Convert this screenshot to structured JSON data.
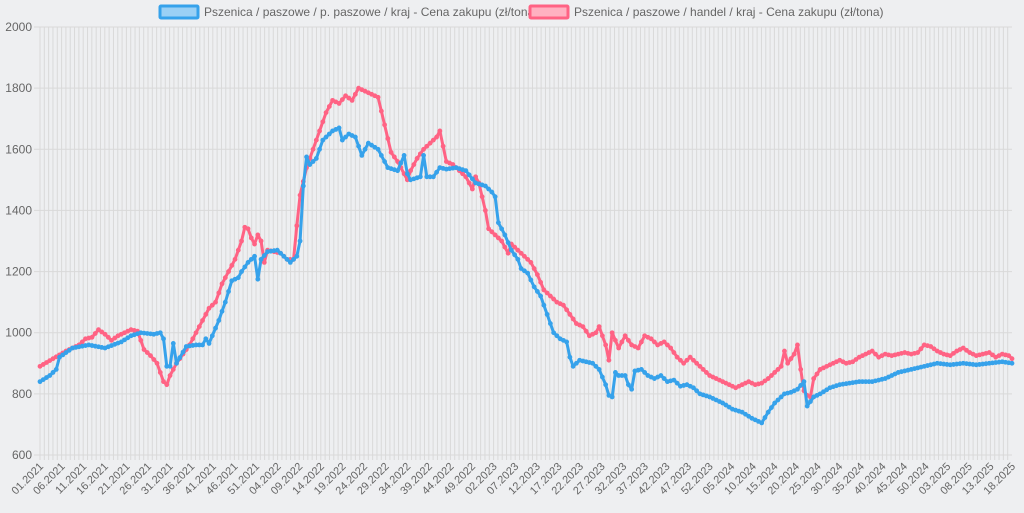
{
  "chart_data": {
    "type": "line",
    "x_ticks": [
      "01.2021",
      "06.2021",
      "11.2021",
      "16.2021",
      "21.2021",
      "26.2021",
      "31.2021",
      "36.2021",
      "41.2021",
      "46.2021",
      "51.2021",
      "04.2022",
      "09.2022",
      "14.2022",
      "19.2022",
      "24.2022",
      "29.2022",
      "34.2022",
      "39.2022",
      "44.2022",
      "49.2022",
      "02.2023",
      "07.2023",
      "12.2023",
      "17.2023",
      "22.2023",
      "27.2023",
      "32.2023",
      "37.2023",
      "42.2023",
      "47.2023",
      "52.2023",
      "05.2024",
      "10.2024",
      "15.2024",
      "20.2024",
      "25.2024",
      "30.2024",
      "35.2024",
      "40.2024",
      "45.2024",
      "50.2024",
      "03.2025",
      "08.2025",
      "13.2025",
      "18.2025"
    ],
    "y_ticks": [
      "2000",
      "1800",
      "1600",
      "1400",
      "1200",
      "1000",
      "800",
      "600"
    ],
    "ylim": [
      600,
      2000
    ],
    "grid": true,
    "legend_position": "top",
    "series": [
      {
        "name": "Pszenica / paszowe / p. paszowe / kraj - Cena zakupu (zł/tona)",
        "color": "#36a2eb",
        "fill": "#9ad0f5",
        "anchors": [
          [
            0,
            840
          ],
          [
            3,
            860
          ],
          [
            5,
            880
          ],
          [
            6,
            920
          ],
          [
            10,
            950
          ],
          [
            15,
            960
          ],
          [
            20,
            950
          ],
          [
            25,
            970
          ],
          [
            28,
            990
          ],
          [
            31,
            1000
          ],
          [
            35,
            995
          ],
          [
            37,
            1000
          ],
          [
            38,
            980
          ],
          [
            39,
            890
          ],
          [
            40,
            890
          ],
          [
            41,
            965
          ],
          [
            42,
            900
          ],
          [
            45,
            955
          ],
          [
            48,
            960
          ],
          [
            50,
            960
          ],
          [
            51,
            980
          ],
          [
            52,
            965
          ],
          [
            55,
            1040
          ],
          [
            57,
            1100
          ],
          [
            59,
            1170
          ],
          [
            61,
            1180
          ],
          [
            62,
            1200
          ],
          [
            64,
            1230
          ],
          [
            66,
            1250
          ],
          [
            67,
            1175
          ],
          [
            68,
            1240
          ],
          [
            70,
            1265
          ],
          [
            73,
            1270
          ],
          [
            75,
            1250
          ],
          [
            77,
            1230
          ],
          [
            79,
            1250
          ],
          [
            80,
            1300
          ],
          [
            81,
            1480
          ],
          [
            82,
            1575
          ],
          [
            83,
            1550
          ],
          [
            85,
            1570
          ],
          [
            87,
            1630
          ],
          [
            90,
            1660
          ],
          [
            92,
            1670
          ],
          [
            93,
            1630
          ],
          [
            95,
            1650
          ],
          [
            97,
            1640
          ],
          [
            99,
            1580
          ],
          [
            101,
            1620
          ],
          [
            104,
            1600
          ],
          [
            107,
            1540
          ],
          [
            110,
            1530
          ],
          [
            112,
            1580
          ],
          [
            113,
            1520
          ],
          [
            114,
            1500
          ],
          [
            117,
            1510
          ],
          [
            118,
            1580
          ],
          [
            119,
            1510
          ],
          [
            121,
            1510
          ],
          [
            123,
            1540
          ],
          [
            125,
            1535
          ],
          [
            128,
            1540
          ],
          [
            131,
            1530
          ],
          [
            134,
            1490
          ],
          [
            137,
            1480
          ],
          [
            139,
            1460
          ],
          [
            140,
            1445
          ],
          [
            141,
            1360
          ],
          [
            143,
            1320
          ],
          [
            145,
            1270
          ],
          [
            147,
            1240
          ],
          [
            148,
            1210
          ],
          [
            150,
            1195
          ],
          [
            152,
            1150
          ],
          [
            154,
            1120
          ],
          [
            156,
            1060
          ],
          [
            158,
            1000
          ],
          [
            160,
            980
          ],
          [
            162,
            970
          ],
          [
            163,
            920
          ],
          [
            164,
            890
          ],
          [
            166,
            910
          ],
          [
            168,
            905
          ],
          [
            170,
            900
          ],
          [
            172,
            880
          ],
          [
            174,
            830
          ],
          [
            175,
            795
          ],
          [
            176,
            790
          ],
          [
            177,
            870
          ],
          [
            178,
            860
          ],
          [
            180,
            860
          ],
          [
            181,
            830
          ],
          [
            182,
            815
          ],
          [
            183,
            875
          ],
          [
            185,
            880
          ],
          [
            187,
            860
          ],
          [
            189,
            850
          ],
          [
            191,
            860
          ],
          [
            193,
            840
          ],
          [
            195,
            845
          ],
          [
            197,
            825
          ],
          [
            199,
            830
          ],
          [
            201,
            820
          ],
          [
            203,
            800
          ],
          [
            206,
            790
          ],
          [
            210,
            770
          ],
          [
            213,
            750
          ],
          [
            216,
            740
          ],
          [
            219,
            720
          ],
          [
            222,
            705
          ],
          [
            224,
            740
          ],
          [
            226,
            770
          ],
          [
            229,
            800
          ],
          [
            231,
            805
          ],
          [
            233,
            815
          ],
          [
            235,
            840
          ],
          [
            236,
            760
          ],
          [
            238,
            790
          ],
          [
            240,
            800
          ],
          [
            243,
            820
          ],
          [
            246,
            830
          ],
          [
            249,
            835
          ],
          [
            252,
            840
          ],
          [
            256,
            840
          ],
          [
            260,
            850
          ],
          [
            264,
            870
          ],
          [
            268,
            880
          ],
          [
            272,
            890
          ],
          [
            276,
            900
          ],
          [
            280,
            895
          ],
          [
            284,
            900
          ],
          [
            288,
            895
          ],
          [
            292,
            900
          ],
          [
            296,
            905
          ],
          [
            299,
            900
          ]
        ]
      },
      {
        "name": "Pszenica / paszowe / handel / kraj - Cena zakupu (zł/tona)",
        "color": "#ff6384",
        "fill": "#ffb1c1",
        "anchors": [
          [
            0,
            890
          ],
          [
            4,
            915
          ],
          [
            8,
            940
          ],
          [
            12,
            960
          ],
          [
            14,
            980
          ],
          [
            16,
            985
          ],
          [
            18,
            1010
          ],
          [
            20,
            995
          ],
          [
            22,
            975
          ],
          [
            24,
            990
          ],
          [
            26,
            1000
          ],
          [
            28,
            1010
          ],
          [
            30,
            1005
          ],
          [
            32,
            945
          ],
          [
            34,
            925
          ],
          [
            36,
            900
          ],
          [
            38,
            840
          ],
          [
            39,
            830
          ],
          [
            40,
            860
          ],
          [
            42,
            900
          ],
          [
            44,
            930
          ],
          [
            46,
            960
          ],
          [
            48,
            1000
          ],
          [
            50,
            1040
          ],
          [
            52,
            1080
          ],
          [
            54,
            1100
          ],
          [
            56,
            1160
          ],
          [
            58,
            1200
          ],
          [
            60,
            1240
          ],
          [
            62,
            1300
          ],
          [
            63,
            1345
          ],
          [
            64,
            1340
          ],
          [
            65,
            1310
          ],
          [
            66,
            1290
          ],
          [
            67,
            1320
          ],
          [
            68,
            1300
          ],
          [
            69,
            1230
          ],
          [
            70,
            1270
          ],
          [
            72,
            1265
          ],
          [
            74,
            1260
          ],
          [
            76,
            1240
          ],
          [
            78,
            1240
          ],
          [
            79,
            1350
          ],
          [
            80,
            1450
          ],
          [
            82,
            1540
          ],
          [
            84,
            1600
          ],
          [
            86,
            1660
          ],
          [
            88,
            1720
          ],
          [
            90,
            1760
          ],
          [
            92,
            1750
          ],
          [
            94,
            1775
          ],
          [
            96,
            1760
          ],
          [
            97,
            1780
          ],
          [
            98,
            1800
          ],
          [
            100,
            1790
          ],
          [
            102,
            1780
          ],
          [
            104,
            1770
          ],
          [
            106,
            1680
          ],
          [
            108,
            1590
          ],
          [
            110,
            1560
          ],
          [
            112,
            1520
          ],
          [
            113,
            1500
          ],
          [
            114,
            1530
          ],
          [
            116,
            1570
          ],
          [
            118,
            1600
          ],
          [
            120,
            1620
          ],
          [
            122,
            1640
          ],
          [
            123,
            1660
          ],
          [
            124,
            1610
          ],
          [
            125,
            1560
          ],
          [
            127,
            1550
          ],
          [
            129,
            1530
          ],
          [
            131,
            1510
          ],
          [
            133,
            1470
          ],
          [
            134,
            1510
          ],
          [
            135,
            1490
          ],
          [
            137,
            1400
          ],
          [
            138,
            1340
          ],
          [
            140,
            1320
          ],
          [
            142,
            1300
          ],
          [
            144,
            1260
          ],
          [
            145,
            1290
          ],
          [
            147,
            1270
          ],
          [
            149,
            1250
          ],
          [
            151,
            1230
          ],
          [
            153,
            1190
          ],
          [
            155,
            1140
          ],
          [
            157,
            1120
          ],
          [
            159,
            1100
          ],
          [
            161,
            1090
          ],
          [
            163,
            1060
          ],
          [
            165,
            1030
          ],
          [
            167,
            1020
          ],
          [
            169,
            990
          ],
          [
            171,
            1000
          ],
          [
            172,
            1020
          ],
          [
            173,
            990
          ],
          [
            174,
            960
          ],
          [
            175,
            910
          ],
          [
            176,
            1000
          ],
          [
            178,
            950
          ],
          [
            180,
            990
          ],
          [
            182,
            960
          ],
          [
            184,
            950
          ],
          [
            186,
            990
          ],
          [
            188,
            980
          ],
          [
            190,
            960
          ],
          [
            192,
            970
          ],
          [
            194,
            950
          ],
          [
            196,
            920
          ],
          [
            198,
            900
          ],
          [
            200,
            920
          ],
          [
            202,
            900
          ],
          [
            204,
            880
          ],
          [
            206,
            860
          ],
          [
            208,
            850
          ],
          [
            210,
            840
          ],
          [
            212,
            830
          ],
          [
            214,
            820
          ],
          [
            216,
            830
          ],
          [
            218,
            840
          ],
          [
            220,
            830
          ],
          [
            222,
            835
          ],
          [
            224,
            850
          ],
          [
            226,
            870
          ],
          [
            228,
            890
          ],
          [
            229,
            940
          ],
          [
            230,
            900
          ],
          [
            232,
            930
          ],
          [
            233,
            960
          ],
          [
            234,
            880
          ],
          [
            235,
            810
          ],
          [
            236,
            795
          ],
          [
            237,
            790
          ],
          [
            238,
            850
          ],
          [
            240,
            880
          ],
          [
            242,
            890
          ],
          [
            244,
            900
          ],
          [
            246,
            910
          ],
          [
            248,
            900
          ],
          [
            250,
            905
          ],
          [
            252,
            920
          ],
          [
            254,
            930
          ],
          [
            256,
            940
          ],
          [
            258,
            920
          ],
          [
            260,
            930
          ],
          [
            262,
            925
          ],
          [
            264,
            930
          ],
          [
            266,
            935
          ],
          [
            268,
            930
          ],
          [
            270,
            935
          ],
          [
            272,
            960
          ],
          [
            274,
            955
          ],
          [
            276,
            940
          ],
          [
            278,
            930
          ],
          [
            280,
            925
          ],
          [
            282,
            940
          ],
          [
            284,
            950
          ],
          [
            286,
            935
          ],
          [
            288,
            925
          ],
          [
            290,
            930
          ],
          [
            292,
            935
          ],
          [
            294,
            920
          ],
          [
            296,
            930
          ],
          [
            298,
            925
          ],
          [
            299,
            915
          ]
        ]
      }
    ]
  }
}
